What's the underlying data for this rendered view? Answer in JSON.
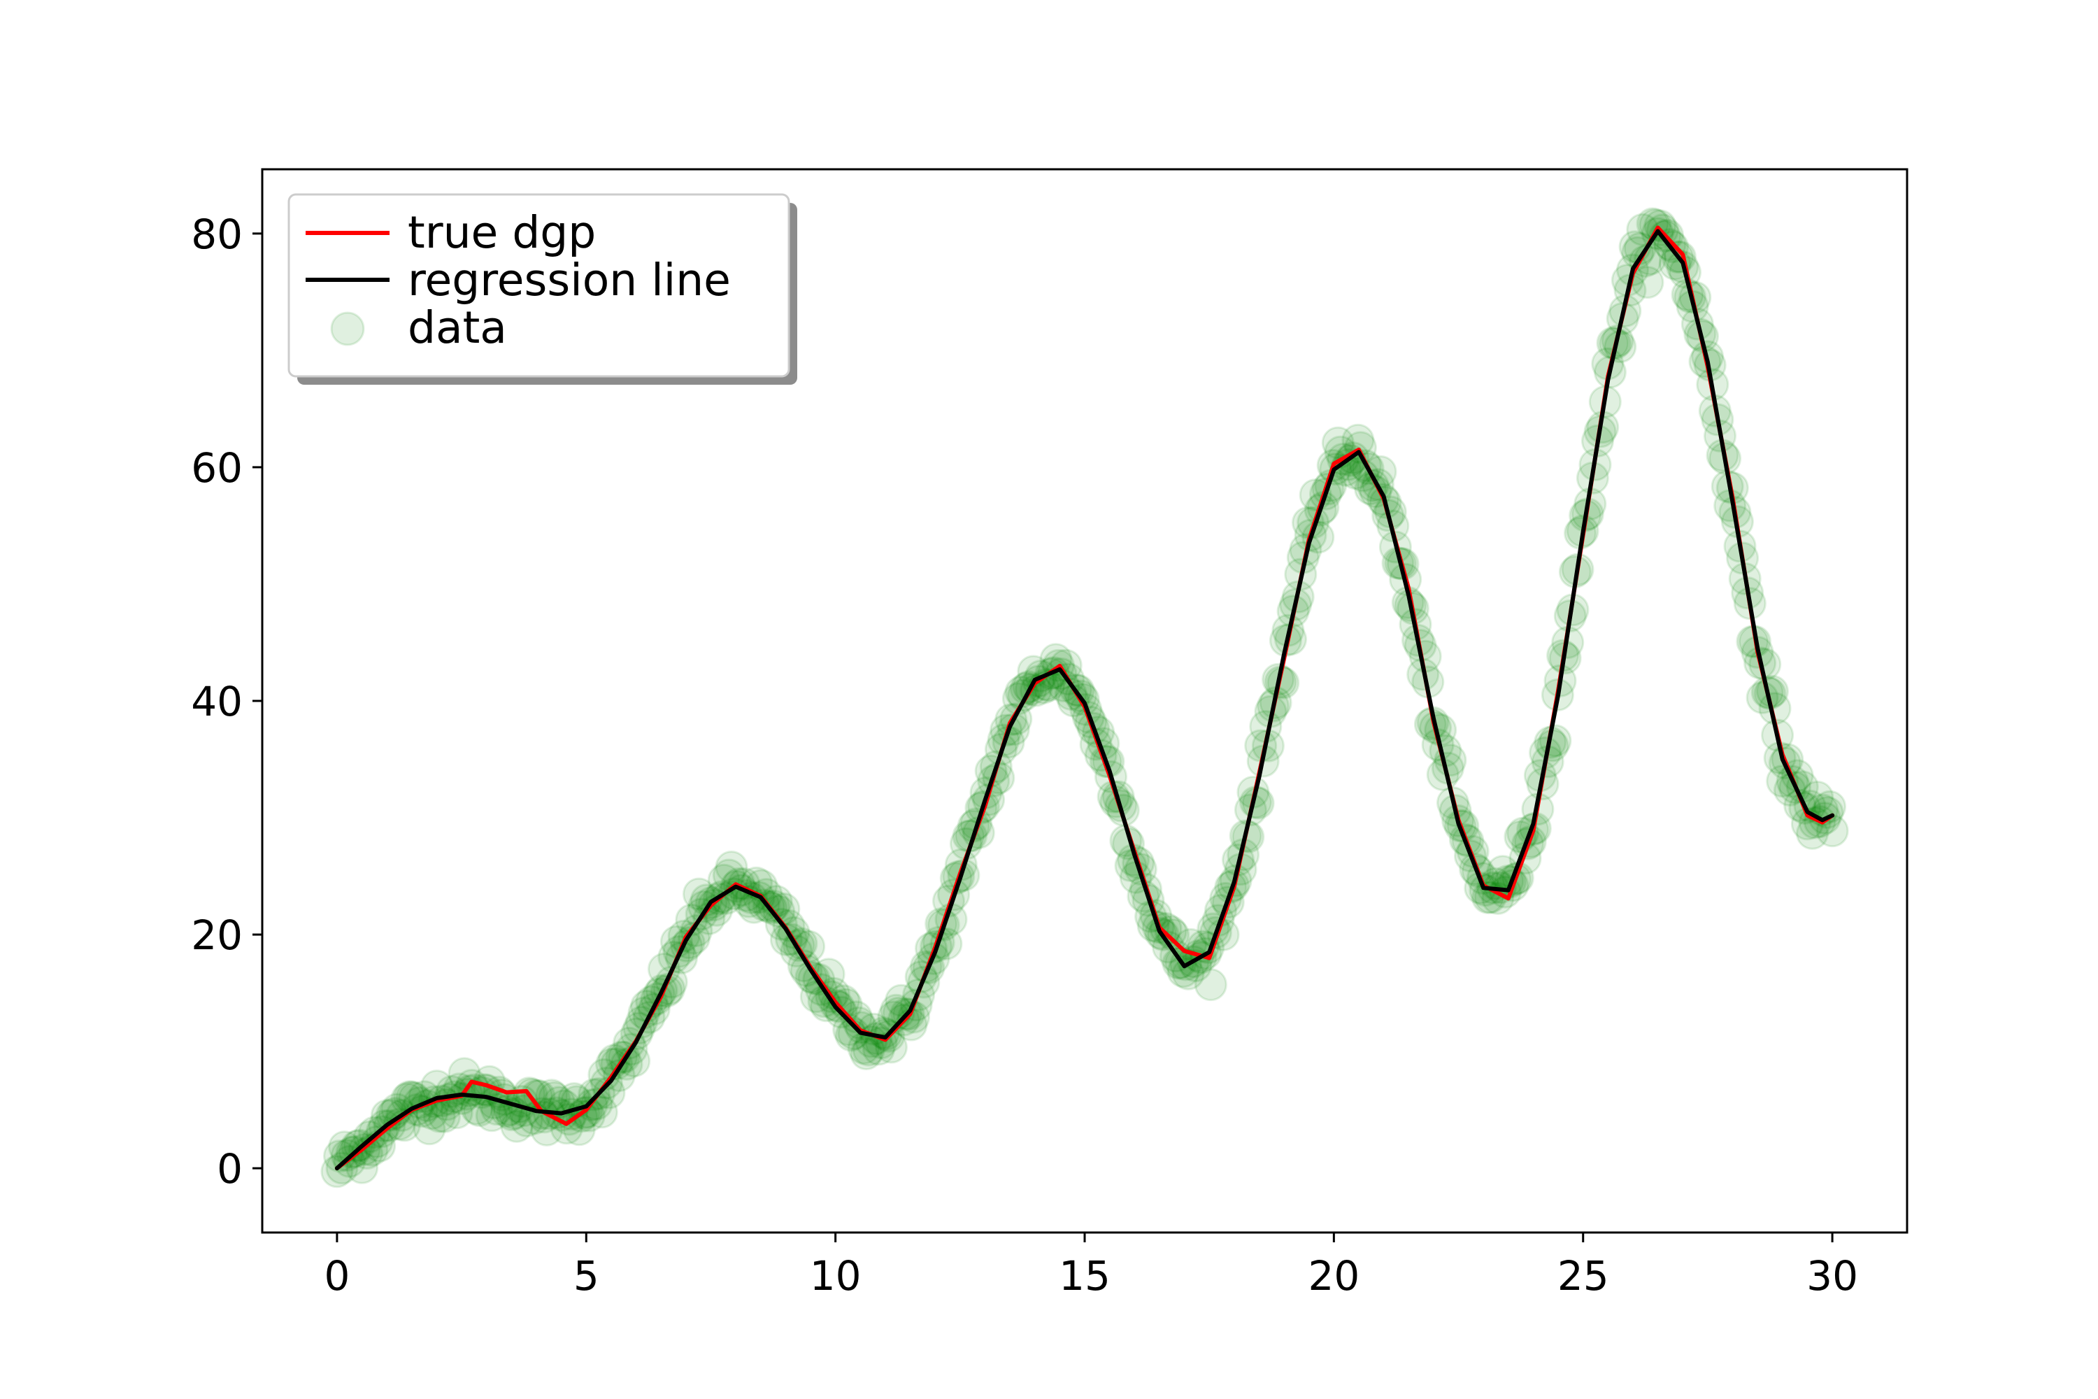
{
  "chart_data": {
    "type": "line",
    "title": "",
    "xlabel": "",
    "ylabel": "",
    "xlim": [
      -1.5,
      31.5
    ],
    "ylim": [
      -5.5,
      85.5
    ],
    "xticks": [
      0,
      5,
      10,
      15,
      20,
      25,
      30
    ],
    "yticks": [
      0,
      20,
      40,
      60,
      80
    ],
    "grid": false,
    "legend": {
      "placement": "upper-left",
      "entries": [
        {
          "label": "true dgp",
          "marker": "line",
          "color": "#ff0000"
        },
        {
          "label": "regression line",
          "marker": "line",
          "color": "#000000"
        },
        {
          "label": "data",
          "marker": "circle",
          "color": "#008000"
        }
      ]
    },
    "series": [
      {
        "name": "regression line",
        "color": "#000000",
        "x": [
          0,
          0.5,
          1,
          1.5,
          2,
          2.5,
          3,
          3.5,
          4,
          4.5,
          5,
          5.5,
          6,
          6.5,
          7,
          7.5,
          8,
          8.5,
          9,
          9.5,
          10,
          10.5,
          11,
          11.5,
          12,
          12.5,
          13,
          13.5,
          14,
          14.5,
          15,
          15.5,
          16,
          16.5,
          17,
          17.5,
          18,
          18.5,
          19,
          19.5,
          20,
          20.5,
          21,
          21.5,
          22,
          22.5,
          23,
          23.5,
          24,
          24.5,
          25,
          25.5,
          26,
          26.5,
          27,
          27.5,
          28,
          28.5,
          29,
          29.5,
          29.8,
          30
        ],
        "y": [
          0,
          1.9,
          3.7,
          5.1,
          6.0,
          6.3,
          6.1,
          5.5,
          4.9,
          4.7,
          5.3,
          7.5,
          10.8,
          15.0,
          19.5,
          22.8,
          24.1,
          23.2,
          20.5,
          17.0,
          13.8,
          11.6,
          11.2,
          13.5,
          18.5,
          24.8,
          31.5,
          37.8,
          41.8,
          42.7,
          39.8,
          34.0,
          26.8,
          20.3,
          17.3,
          18.5,
          24.5,
          33.5,
          44.0,
          53.5,
          59.8,
          61.3,
          57.5,
          49.0,
          38.5,
          29.5,
          24.0,
          23.8,
          29.5,
          40.5,
          54.5,
          67.5,
          77.0,
          80.2,
          77.5,
          69.0,
          57.0,
          44.5,
          35.0,
          30.5,
          29.8,
          30.2
        ]
      },
      {
        "name": "true dgp",
        "color": "#ff0000",
        "x": [
          0,
          0.5,
          1,
          1.5,
          2,
          2.5,
          2.7,
          3,
          3.4,
          3.8,
          4.1,
          4.6,
          5,
          5.5,
          6,
          6.5,
          7,
          7.5,
          8,
          8.5,
          9,
          9.5,
          10,
          10.5,
          11,
          11.5,
          12,
          12.5,
          13,
          13.5,
          14,
          14.5,
          15,
          15.5,
          16,
          16.5,
          17,
          17.5,
          18,
          18.5,
          19,
          19.5,
          20,
          20.5,
          21,
          21.5,
          22,
          22.5,
          23,
          23.5,
          24,
          24.5,
          25,
          25.5,
          26,
          26.5,
          27,
          27.5,
          28,
          28.5,
          29,
          29.5,
          29.8,
          30
        ],
        "y": [
          0,
          1.6,
          3.4,
          5.0,
          5.8,
          6.2,
          7.4,
          7.1,
          6.5,
          6.6,
          4.9,
          3.8,
          5.0,
          7.8,
          10.9,
          14.7,
          19.8,
          22.5,
          24.3,
          23.3,
          20.6,
          17.2,
          14.2,
          11.8,
          11.0,
          13.2,
          18.9,
          25.2,
          31.0,
          38.1,
          41.5,
          43.0,
          39.5,
          33.6,
          27.1,
          20.6,
          18.6,
          18.0,
          24.1,
          33.8,
          43.6,
          53.8,
          60.3,
          61.5,
          57.3,
          49.6,
          38.2,
          29.8,
          24.2,
          23.1,
          28.9,
          40.9,
          54.2,
          67.8,
          76.6,
          80.5,
          78.2,
          68.6,
          57.4,
          44.2,
          35.4,
          30.2,
          29.6,
          30.2
        ]
      }
    ],
    "scatter": {
      "name": "data",
      "color": "#008000",
      "alpha": 0.12,
      "n_points": 600
    }
  }
}
